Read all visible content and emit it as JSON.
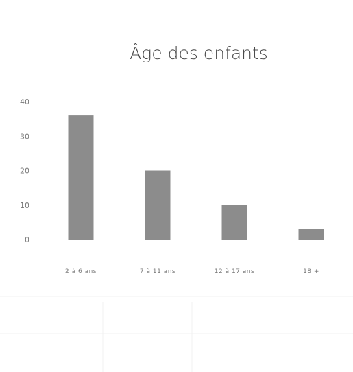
{
  "chart_data": {
    "type": "bar",
    "title": "Âge des enfants",
    "xlabel": "",
    "ylabel": "",
    "categories": [
      "2 à 6 ans",
      "7 à 11 ans",
      "12 à 17 ans",
      "18 +"
    ],
    "values": [
      36,
      20,
      10,
      3
    ],
    "ylim": [
      0,
      40
    ],
    "yticks": [
      0,
      10,
      20,
      30,
      40
    ],
    "grid": false,
    "legend": "none",
    "colors": {
      "bar": "#8c8c8c",
      "text": "#777777",
      "title": "#4a4a4a"
    }
  }
}
